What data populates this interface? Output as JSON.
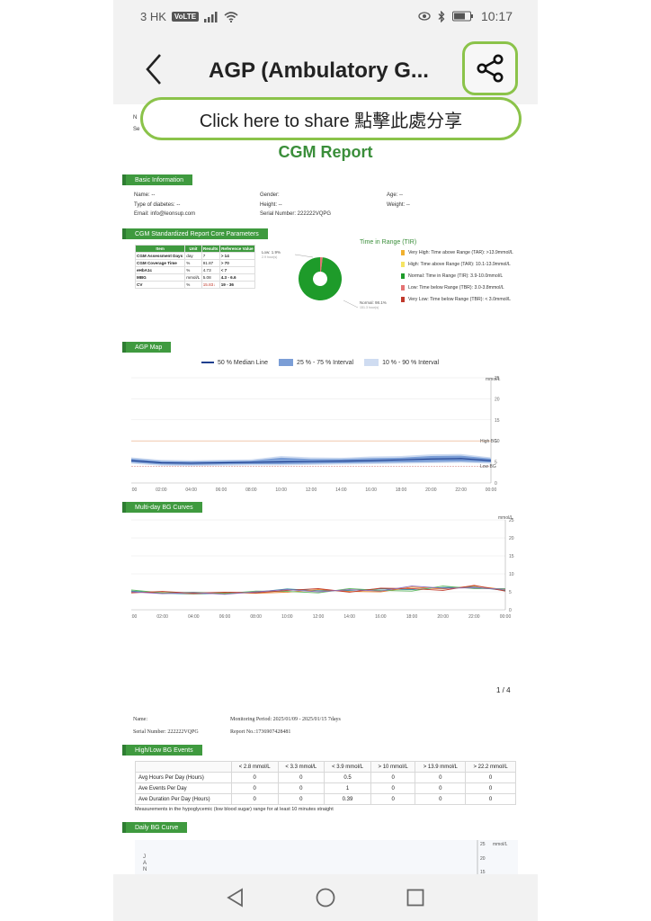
{
  "status_bar": {
    "carrier": "3 HK",
    "volte": "VoLTE",
    "time": "10:17"
  },
  "app_bar": {
    "title": "AGP (Ambulatory G...",
    "share_hint": "Click here to share 點擊此處分享"
  },
  "report": {
    "frag_name": "N",
    "frag_serial": "Se",
    "title": "CGM Report",
    "basic_info": {
      "heading": "Basic Information",
      "name": "Name: --",
      "gender": "Gender:",
      "age": "Age: --",
      "type": "Type of diabetes: --",
      "height": "Height: --",
      "weight": "Weight: --",
      "email": "Email: info@leonsup.com",
      "serial": "Serial Number: 222222VQPG"
    },
    "core_params": {
      "heading": "CGM Standardized Report Core Parameters",
      "headers": [
        "Item",
        "Unit",
        "Results",
        "Reference Value"
      ],
      "rows": [
        [
          "CGM Assessment Days",
          "day",
          "7",
          "> 14"
        ],
        [
          "CGM Coverage Time",
          "%",
          "91.87",
          "> 70"
        ],
        [
          "eHbA1c",
          "%",
          "4.73",
          "< 7"
        ],
        [
          "MBG",
          "mmol/L",
          "5.08",
          "4.3 - 6.6"
        ],
        [
          "CV",
          "%",
          "15.83↓",
          "19 - 36"
        ]
      ]
    },
    "tir": {
      "title": "Time in Range (TIR)",
      "low_label": "Low: 1.9%",
      "low_sub": "2.9 hour(s)",
      "normal_label": "Normal: 98.1%",
      "normal_sub": "151.3 hour(s)",
      "low_fraction": 0.019,
      "normal_fraction": 0.981,
      "colors": {
        "normal": "#1e9b2a",
        "low": "#e57373",
        "very_high": "#f0b030",
        "high": "#f5e463",
        "very_low": "#c0392b"
      },
      "legend": [
        "Very High: Time above Range (TAR): >13.9mmol/L",
        "High: Time above Range (TAR): 10.1-13.9mmol/L",
        "Normal: Time in Range (TIR): 3.9-10.0mmol/L",
        "Low: Time below Range (TBR): 3.0-3.8mmol/L",
        "Very Low: Time below Range (TBR): < 3.0mmol/L"
      ]
    },
    "agp_map": {
      "heading": "AGP Map",
      "legend_median": "50 % Median Line",
      "legend_iqr": "25 % - 75 % Interval",
      "legend_outer": "10 % - 90 % Interval",
      "unit": "mmol/L",
      "high_bg": "High BG",
      "low_bg": "Low BG"
    },
    "multiday": {
      "heading": "Multi-day BG Curves",
      "unit": "mmol/L"
    },
    "page_number": "1 / 4",
    "page2": {
      "name": "Name:",
      "period": "Monitoring Period: 2025/01/09 - 2025/01/15 7days",
      "serial": "Serial Number: 222222VQPG",
      "report_no": "Report No.:1736907428481",
      "events_heading": "High/Low BG Events",
      "events_headers": [
        "",
        "< 2.8 mmol/L",
        "< 3.3 mmol/L",
        "< 3.9 mmol/L",
        "> 10 mmol/L",
        "> 13.9 mmol/L",
        "> 22.2 mmol/L"
      ],
      "events_rows": [
        [
          "Avg Hours Per Day (Hours)",
          "0",
          "0",
          "0.5",
          "0",
          "0",
          "0"
        ],
        [
          "Ave Events Per Day",
          "0",
          "0",
          "1",
          "0",
          "0",
          "0"
        ],
        [
          "Ave Duration Per Day (Hours)",
          "0",
          "0",
          "0.39",
          "0",
          "0",
          "0"
        ]
      ],
      "note": "Measurements in the hypoglycemic (low blood sugar) range for at least 10 minutes straight",
      "daily_heading": "Daily BG Curve",
      "daily_unit": "mmol/L",
      "daily_side": "JAN",
      "daily_ticks": [
        "25",
        "20",
        "15"
      ]
    }
  },
  "chart_data": [
    {
      "type": "line",
      "title": "AGP Map",
      "x": [
        "00:00",
        "02:00",
        "04:00",
        "06:00",
        "08:00",
        "10:00",
        "12:00",
        "14:00",
        "16:00",
        "18:00",
        "20:00",
        "22:00",
        "00:00"
      ],
      "ylim": [
        0,
        25
      ],
      "yticks": [
        "0",
        "5",
        "10",
        "15",
        "20",
        "25"
      ],
      "reference_lines": [
        10,
        3.9
      ],
      "series": [
        {
          "name": "50 % Median Line",
          "values": [
            5.3,
            4.8,
            4.7,
            4.8,
            4.9,
            5.0,
            5.1,
            5.2,
            5.3,
            5.5,
            5.7,
            5.8,
            5.3
          ]
        },
        {
          "name": "25 % - 75 % Interval",
          "values_low": [
            4.9,
            4.4,
            4.3,
            4.4,
            4.5,
            4.5,
            4.6,
            4.7,
            4.8,
            4.9,
            5.0,
            5.1,
            4.9
          ],
          "values_high": [
            5.8,
            5.2,
            5.1,
            5.2,
            5.3,
            6.0,
            5.7,
            5.7,
            5.9,
            6.0,
            6.4,
            6.5,
            5.8
          ]
        },
        {
          "name": "10 % - 90 % Interval",
          "values_low": [
            4.6,
            4.1,
            4.0,
            4.1,
            4.2,
            4.2,
            4.3,
            4.4,
            4.5,
            4.6,
            4.7,
            4.8,
            4.6
          ],
          "values_high": [
            6.1,
            5.5,
            5.4,
            5.5,
            5.6,
            6.4,
            6.1,
            6.0,
            6.3,
            6.4,
            6.8,
            6.9,
            6.1
          ]
        }
      ]
    },
    {
      "type": "line",
      "title": "Multi-day BG Curves",
      "x": [
        "00:00",
        "02:00",
        "04:00",
        "06:00",
        "08:00",
        "10:00",
        "12:00",
        "14:00",
        "16:00",
        "18:00",
        "20:00",
        "22:00",
        "00:00"
      ],
      "ylim": [
        0,
        25
      ],
      "yticks": [
        "0",
        "5",
        "10",
        "15",
        "20",
        "25"
      ],
      "series": [
        {
          "values": [
            5.2,
            4.6,
            4.4,
            4.6,
            4.9,
            5.8,
            5.3,
            5.4,
            5.8,
            5.6,
            6.2,
            6.3,
            5.4
          ],
          "color": "#2b8a9e"
        },
        {
          "values": [
            4.9,
            4.8,
            4.5,
            4.8,
            4.6,
            4.9,
            5.6,
            5.1,
            5.0,
            6.3,
            5.8,
            6.6,
            5.6
          ],
          "color": "#e67e22"
        },
        {
          "values": [
            5.5,
            4.7,
            4.9,
            4.5,
            5.2,
            5.1,
            4.7,
            5.9,
            5.4,
            5.2,
            6.6,
            5.9,
            5.9
          ],
          "color": "#5cb85c"
        },
        {
          "values": [
            4.7,
            5.1,
            4.6,
            4.9,
            4.7,
            5.4,
            5.9,
            4.9,
            6.0,
            5.9,
            5.4,
            6.8,
            5.2
          ],
          "color": "#c0392b"
        },
        {
          "values": [
            5.0,
            4.5,
            4.8,
            4.3,
            5.0,
            5.6,
            5.0,
            5.6,
            5.2,
            6.6,
            6.0,
            6.1,
            5.7
          ],
          "color": "#8e6bb8"
        }
      ]
    }
  ]
}
